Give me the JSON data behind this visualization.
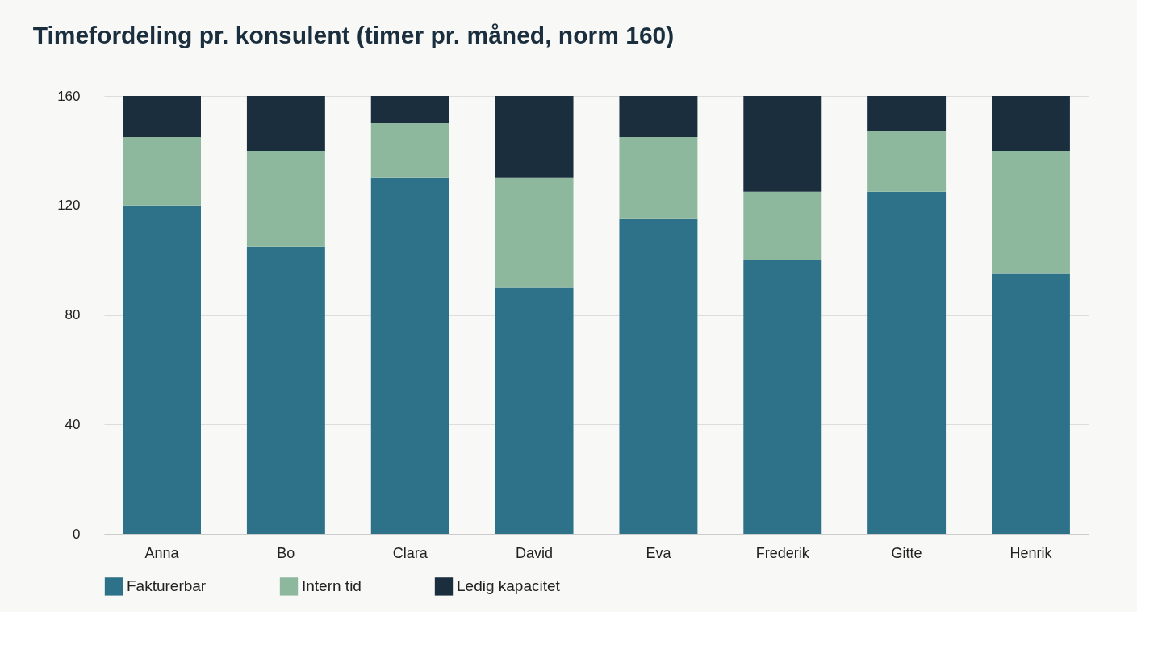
{
  "chart_data": {
    "type": "bar",
    "title": "Timefordeling pr. konsulent (timer pr. måned, norm 160)",
    "categories": [
      "Anna",
      "Bo",
      "Clara",
      "David",
      "Eva",
      "Frederik",
      "Gitte",
      "Henrik"
    ],
    "stacked": true,
    "series": [
      {
        "name": "Fakturerbar",
        "color": "#2e7289",
        "values": [
          120,
          105,
          130,
          90,
          115,
          100,
          125,
          95
        ]
      },
      {
        "name": "Intern tid",
        "color": "#8db89e",
        "values": [
          25,
          35,
          20,
          40,
          30,
          25,
          22,
          45
        ]
      },
      {
        "name": "Ledig kapacitet",
        "color": "#1a2e3e",
        "values": [
          15,
          20,
          10,
          30,
          15,
          35,
          13,
          20
        ]
      }
    ],
    "ylim": [
      0,
      160
    ],
    "yticks": [
      0,
      40,
      80,
      120,
      160
    ],
    "grid": "y",
    "legend": "bottom"
  }
}
